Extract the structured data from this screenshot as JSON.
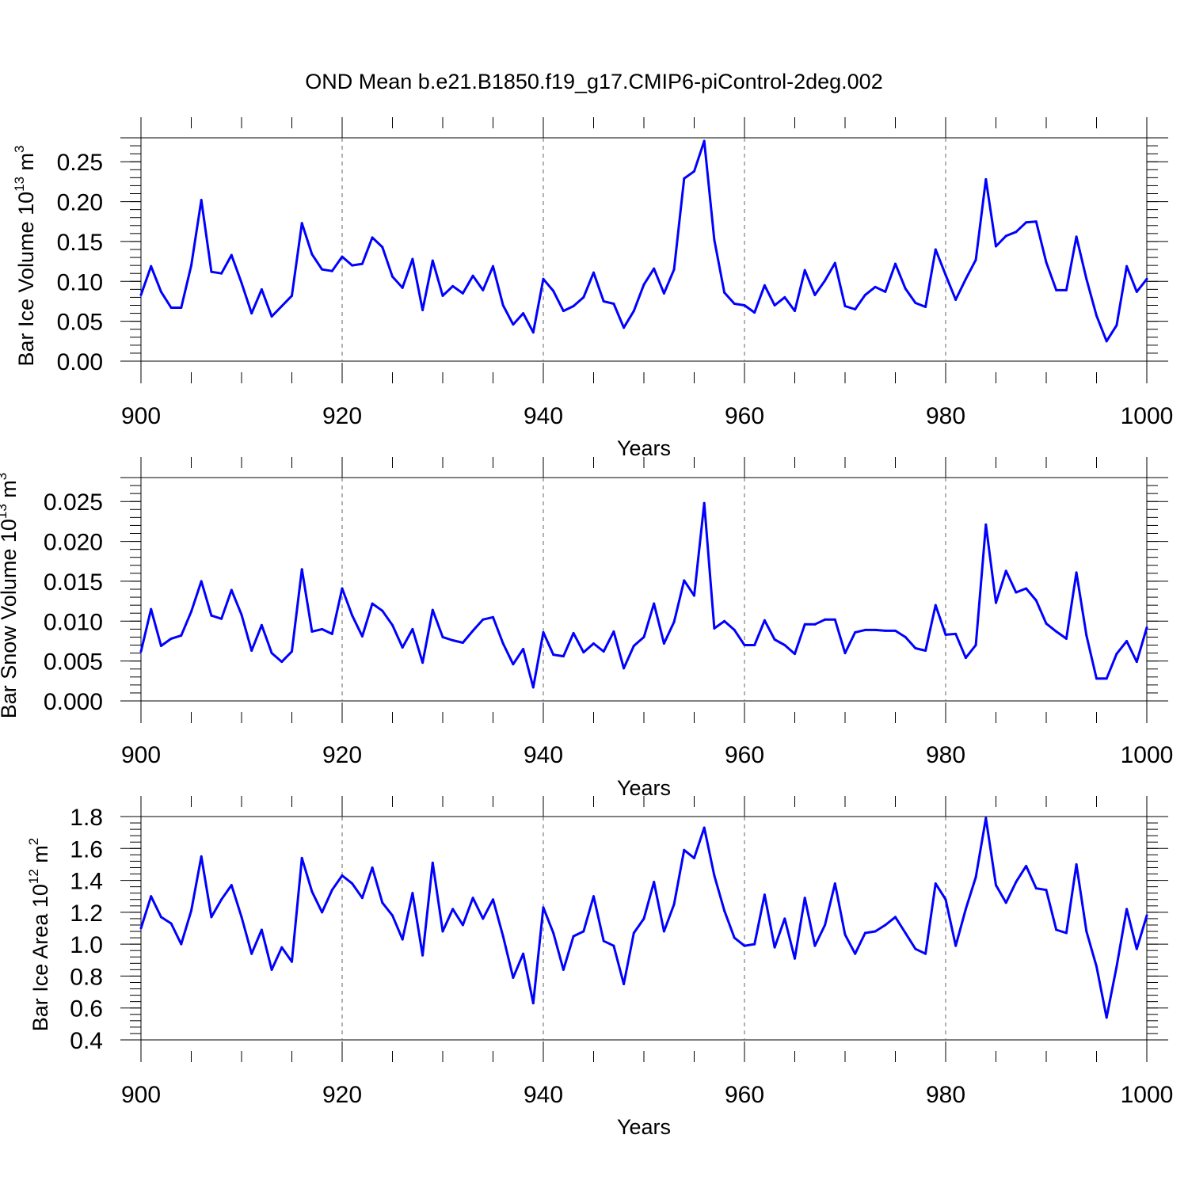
{
  "title": "OND Mean b.e21.B1850.f19_g17.CMIP6-piControl-2deg.002",
  "line_color": "#0000ff",
  "chart_data": [
    {
      "type": "line",
      "ylabel_main": "Bar Ice Volume 10",
      "ylabel_exp": "13",
      "ylabel_unit": " m",
      "ylabel_unit_exp": "3",
      "xlabel": "Years",
      "xlim": [
        900,
        1000
      ],
      "ylim": [
        0.0,
        0.28
      ],
      "yticks": [
        0.0,
        0.05,
        0.1,
        0.15,
        0.2,
        0.25
      ],
      "ytick_labels": [
        "0.00",
        "0.05",
        "0.10",
        "0.15",
        "0.20",
        "0.25"
      ],
      "xticks": [
        900,
        920,
        940,
        960,
        980,
        1000
      ],
      "xtick_labels": [
        "900",
        "920",
        "940",
        "960",
        "980",
        "1000"
      ],
      "grid": "dashed vertical at major x ticks",
      "x": [
        900,
        901,
        902,
        903,
        904,
        905,
        906,
        907,
        908,
        909,
        910,
        911,
        912,
        913,
        914,
        915,
        916,
        917,
        918,
        919,
        920,
        921,
        922,
        923,
        924,
        925,
        926,
        927,
        928,
        929,
        930,
        931,
        932,
        933,
        934,
        935,
        936,
        937,
        938,
        939,
        940,
        941,
        942,
        943,
        944,
        945,
        946,
        947,
        948,
        949,
        950,
        951,
        952,
        953,
        954,
        955,
        956,
        957,
        958,
        959,
        960,
        961,
        962,
        963,
        964,
        965,
        966,
        967,
        968,
        969,
        970,
        971,
        972,
        973,
        974,
        975,
        976,
        977,
        978,
        979,
        980,
        981,
        982,
        983,
        984,
        985,
        986,
        987,
        988,
        989,
        990,
        991,
        992,
        993,
        994,
        995,
        996,
        997,
        998,
        999,
        1000
      ],
      "values": [
        0.083,
        0.119,
        0.087,
        0.067,
        0.067,
        0.12,
        0.202,
        0.112,
        0.11,
        0.133,
        0.098,
        0.06,
        0.09,
        0.056,
        0.069,
        0.082,
        0.173,
        0.134,
        0.115,
        0.113,
        0.131,
        0.12,
        0.122,
        0.155,
        0.143,
        0.106,
        0.092,
        0.128,
        0.064,
        0.126,
        0.082,
        0.094,
        0.085,
        0.107,
        0.089,
        0.119,
        0.07,
        0.046,
        0.06,
        0.036,
        0.103,
        0.088,
        0.063,
        0.069,
        0.08,
        0.111,
        0.075,
        0.072,
        0.042,
        0.063,
        0.096,
        0.116,
        0.085,
        0.115,
        0.229,
        0.238,
        0.276,
        0.152,
        0.086,
        0.072,
        0.07,
        0.061,
        0.095,
        0.07,
        0.08,
        0.063,
        0.114,
        0.083,
        0.101,
        0.123,
        0.069,
        0.065,
        0.083,
        0.093,
        0.087,
        0.122,
        0.091,
        0.073,
        0.068,
        0.14,
        0.108,
        0.077,
        0.103,
        0.127,
        0.228,
        0.144,
        0.157,
        0.162,
        0.174,
        0.175,
        0.124,
        0.089,
        0.089,
        0.156,
        0.103,
        0.057,
        0.025,
        0.045,
        0.119,
        0.087,
        0.103
      ]
    },
    {
      "type": "line",
      "ylabel_main": "Bar Snow Volume 10",
      "ylabel_exp": "13",
      "ylabel_unit": " m",
      "ylabel_unit_exp": "3",
      "xlabel": "Years",
      "xlim": [
        900,
        1000
      ],
      "ylim": [
        0.0,
        0.028
      ],
      "yticks": [
        0.0,
        0.005,
        0.01,
        0.015,
        0.02,
        0.025
      ],
      "ytick_labels": [
        "0.000",
        "0.005",
        "0.010",
        "0.015",
        "0.020",
        "0.025"
      ],
      "xticks": [
        900,
        920,
        940,
        960,
        980,
        1000
      ],
      "xtick_labels": [
        "900",
        "920",
        "940",
        "960",
        "980",
        "1000"
      ],
      "grid": "dashed vertical at major x ticks",
      "x": [
        900,
        901,
        902,
        903,
        904,
        905,
        906,
        907,
        908,
        909,
        910,
        911,
        912,
        913,
        914,
        915,
        916,
        917,
        918,
        919,
        920,
        921,
        922,
        923,
        924,
        925,
        926,
        927,
        928,
        929,
        930,
        931,
        932,
        933,
        934,
        935,
        936,
        937,
        938,
        939,
        940,
        941,
        942,
        943,
        944,
        945,
        946,
        947,
        948,
        949,
        950,
        951,
        952,
        953,
        954,
        955,
        956,
        957,
        958,
        959,
        960,
        961,
        962,
        963,
        964,
        965,
        966,
        967,
        968,
        969,
        970,
        971,
        972,
        973,
        974,
        975,
        976,
        977,
        978,
        979,
        980,
        981,
        982,
        983,
        984,
        985,
        986,
        987,
        988,
        989,
        990,
        991,
        992,
        993,
        994,
        995,
        996,
        997,
        998,
        999,
        1000
      ],
      "values": [
        0.0062,
        0.0115,
        0.0069,
        0.0078,
        0.0082,
        0.0112,
        0.015,
        0.0107,
        0.0103,
        0.0139,
        0.0108,
        0.0063,
        0.0095,
        0.006,
        0.0049,
        0.0062,
        0.0165,
        0.0087,
        0.009,
        0.0084,
        0.0141,
        0.0107,
        0.0081,
        0.0122,
        0.0113,
        0.0095,
        0.0067,
        0.009,
        0.0048,
        0.0114,
        0.008,
        0.0076,
        0.0073,
        0.0088,
        0.0102,
        0.0105,
        0.0072,
        0.0046,
        0.0065,
        0.0017,
        0.0086,
        0.0058,
        0.0056,
        0.0085,
        0.0061,
        0.0072,
        0.0062,
        0.0087,
        0.0041,
        0.0069,
        0.008,
        0.0122,
        0.0072,
        0.0099,
        0.0151,
        0.0132,
        0.0248,
        0.0091,
        0.01,
        0.0089,
        0.007,
        0.007,
        0.0101,
        0.0077,
        0.007,
        0.0059,
        0.0096,
        0.0096,
        0.0102,
        0.0102,
        0.006,
        0.0086,
        0.0089,
        0.0089,
        0.0088,
        0.0088,
        0.008,
        0.0066,
        0.0063,
        0.012,
        0.0083,
        0.0084,
        0.0054,
        0.007,
        0.0221,
        0.0123,
        0.0163,
        0.0136,
        0.0141,
        0.0126,
        0.0097,
        0.0087,
        0.0078,
        0.0161,
        0.0082,
        0.0028,
        0.0028,
        0.0059,
        0.0075,
        0.0049,
        0.0092
      ]
    },
    {
      "type": "line",
      "ylabel_main": "Bar Ice Area 10",
      "ylabel_exp": "12",
      "ylabel_unit": " m",
      "ylabel_unit_exp": "2",
      "xlabel": "Years",
      "xlim": [
        900,
        1000
      ],
      "ylim": [
        0.4,
        1.8
      ],
      "yticks": [
        0.4,
        0.6,
        0.8,
        1.0,
        1.2,
        1.4,
        1.6,
        1.8
      ],
      "ytick_labels": [
        "0.4",
        "0.6",
        "0.8",
        "1.0",
        "1.2",
        "1.4",
        "1.6",
        "1.8"
      ],
      "xticks": [
        900,
        920,
        940,
        960,
        980,
        1000
      ],
      "xtick_labels": [
        "900",
        "920",
        "940",
        "960",
        "980",
        "1000"
      ],
      "grid": "dashed vertical at major x ticks",
      "x": [
        900,
        901,
        902,
        903,
        904,
        905,
        906,
        907,
        908,
        909,
        910,
        911,
        912,
        913,
        914,
        915,
        916,
        917,
        918,
        919,
        920,
        921,
        922,
        923,
        924,
        925,
        926,
        927,
        928,
        929,
        930,
        931,
        932,
        933,
        934,
        935,
        936,
        937,
        938,
        939,
        940,
        941,
        942,
        943,
        944,
        945,
        946,
        947,
        948,
        949,
        950,
        951,
        952,
        953,
        954,
        955,
        956,
        957,
        958,
        959,
        960,
        961,
        962,
        963,
        964,
        965,
        966,
        967,
        968,
        969,
        970,
        971,
        972,
        973,
        974,
        975,
        976,
        977,
        978,
        979,
        980,
        981,
        982,
        983,
        984,
        985,
        986,
        987,
        988,
        989,
        990,
        991,
        992,
        993,
        994,
        995,
        996,
        997,
        998,
        999,
        1000
      ],
      "values": [
        1.1,
        1.3,
        1.17,
        1.13,
        1.0,
        1.21,
        1.55,
        1.17,
        1.28,
        1.37,
        1.17,
        0.94,
        1.09,
        0.84,
        0.98,
        0.89,
        1.54,
        1.33,
        1.2,
        1.34,
        1.43,
        1.38,
        1.29,
        1.48,
        1.26,
        1.18,
        1.03,
        1.32,
        0.93,
        1.51,
        1.08,
        1.22,
        1.12,
        1.29,
        1.16,
        1.28,
        1.05,
        0.79,
        0.94,
        0.63,
        1.23,
        1.07,
        0.84,
        1.05,
        1.08,
        1.3,
        1.02,
        0.99,
        0.75,
        1.07,
        1.16,
        1.39,
        1.08,
        1.25,
        1.59,
        1.54,
        1.73,
        1.43,
        1.21,
        1.04,
        0.99,
        1.0,
        1.31,
        0.98,
        1.16,
        0.91,
        1.29,
        0.99,
        1.12,
        1.38,
        1.06,
        0.94,
        1.07,
        1.08,
        1.12,
        1.17,
        1.07,
        0.97,
        0.94,
        1.38,
        1.28,
        0.99,
        1.22,
        1.42,
        1.79,
        1.37,
        1.26,
        1.39,
        1.49,
        1.35,
        1.34,
        1.09,
        1.07,
        1.5,
        1.08,
        0.86,
        0.54,
        0.86,
        1.22,
        0.97,
        1.18
      ]
    }
  ]
}
